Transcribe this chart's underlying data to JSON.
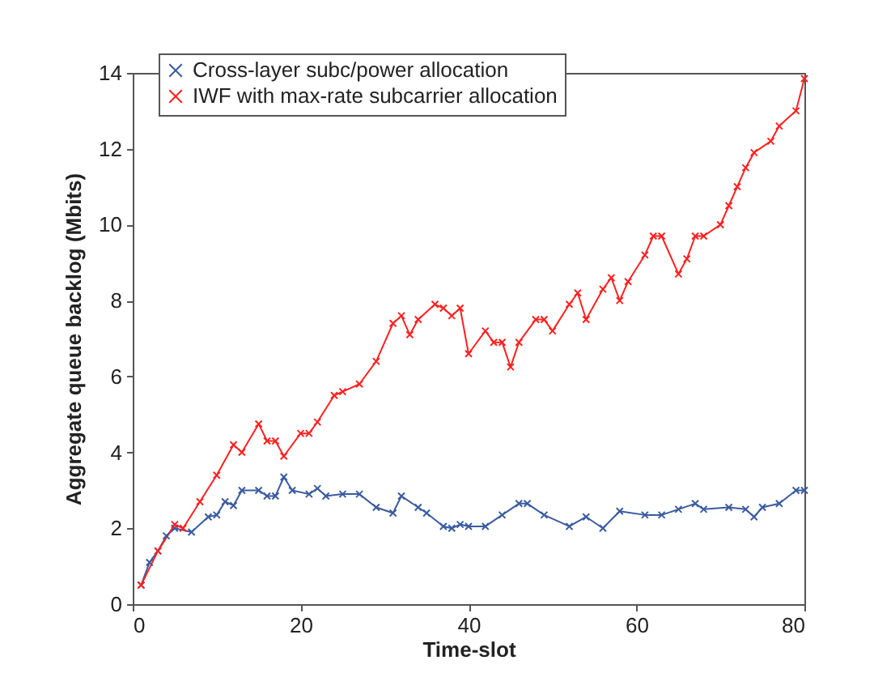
{
  "chart_data": {
    "type": "line",
    "xlabel": "Time-slot",
    "ylabel": "Aggregate queue backlog (Mbits)",
    "xlim": [
      0,
      80
    ],
    "ylim": [
      0,
      14
    ],
    "xticks": [
      0,
      20,
      40,
      60,
      80
    ],
    "yticks": [
      0,
      2,
      4,
      6,
      8,
      10,
      12,
      14
    ],
    "grid": false,
    "legend": "top left",
    "marker": "cross",
    "line_style": "solid",
    "series": [
      {
        "name": "Cross-layer subc/power allocation",
        "color": "#3a5ba0",
        "x": [
          1,
          2,
          3,
          4,
          5,
          7,
          9,
          10,
          11,
          12,
          13,
          15,
          16,
          17,
          18,
          19,
          21,
          22,
          23,
          25,
          27,
          29,
          31,
          32,
          34,
          35,
          37,
          38,
          39,
          40,
          42,
          44,
          46,
          47,
          49,
          52,
          54,
          56,
          58,
          61,
          63,
          65,
          67,
          68,
          71,
          73,
          74,
          75,
          77,
          79,
          80
        ],
        "values": [
          0.5,
          1.1,
          1.4,
          1.8,
          2.0,
          1.9,
          2.3,
          2.35,
          2.7,
          2.6,
          3.0,
          3.0,
          2.85,
          2.85,
          3.35,
          3.0,
          2.9,
          3.05,
          2.85,
          2.9,
          2.9,
          2.55,
          2.4,
          2.85,
          2.55,
          2.4,
          2.05,
          2.0,
          2.1,
          2.05,
          2.05,
          2.35,
          2.65,
          2.65,
          2.35,
          2.05,
          2.3,
          2.0,
          2.45,
          2.35,
          2.35,
          2.5,
          2.65,
          2.5,
          2.55,
          2.5,
          2.3,
          2.55,
          2.65,
          3.0,
          3.0
        ]
      },
      {
        "name": "IWF with max-rate subcarrier allocation",
        "color": "#ff2020",
        "x": [
          1,
          3,
          5,
          6,
          8,
          10,
          12,
          13,
          15,
          16,
          17,
          18,
          20,
          21,
          22,
          24,
          25,
          27,
          29,
          31,
          32,
          33,
          34,
          36,
          37,
          38,
          39,
          40,
          42,
          43,
          44,
          45,
          46,
          48,
          49,
          50,
          52,
          53,
          54,
          56,
          57,
          58,
          59,
          61,
          62,
          63,
          65,
          66,
          67,
          68,
          70,
          71,
          72,
          73,
          74,
          76,
          77,
          79,
          80
        ],
        "values": [
          0.5,
          1.4,
          2.1,
          2.0,
          2.7,
          3.4,
          4.2,
          4.0,
          4.75,
          4.3,
          4.3,
          3.9,
          4.5,
          4.5,
          4.8,
          5.5,
          5.6,
          5.8,
          6.4,
          7.4,
          7.6,
          7.1,
          7.5,
          7.9,
          7.8,
          7.6,
          7.8,
          6.6,
          7.2,
          6.9,
          6.9,
          6.25,
          6.9,
          7.5,
          7.5,
          7.2,
          7.9,
          8.2,
          7.5,
          8.3,
          8.6,
          8.0,
          8.5,
          9.2,
          9.7,
          9.7,
          8.7,
          9.1,
          9.7,
          9.7,
          10.0,
          10.5,
          11.0,
          11.5,
          11.9,
          12.2,
          12.6,
          13.0,
          13.85
        ]
      }
    ]
  }
}
